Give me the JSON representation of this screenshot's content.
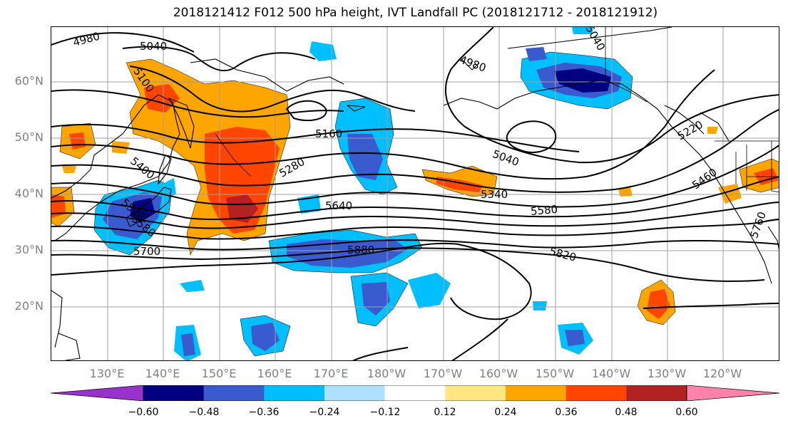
{
  "title": "2018121412 F012 500 hPa height, IVT Landfall PC (2018121712 - 2018121912)",
  "lat_labels": [
    "60°N",
    "50°N",
    "40°N",
    "30°N",
    "20°N"
  ],
  "lon_labels": [
    "130°E",
    "140°E",
    "150°E",
    "160°E",
    "170°E",
    "180°W",
    "170°W",
    "160°W",
    "150°W",
    "140°W",
    "130°W",
    "120°W"
  ],
  "contour_labels": [
    "4980",
    "5040",
    "5100",
    "4980",
    "5040",
    "5160",
    "5280",
    "5220",
    "5400",
    "5040",
    "5340",
    "5460",
    "5640",
    "5580",
    "5520",
    "5580",
    "5700",
    "5880",
    "5820",
    "5760"
  ],
  "colorbar": {
    "ticks": [
      "−0.60",
      "−0.48",
      "−0.36",
      "−0.24",
      "−0.12",
      "0.12",
      "0.24",
      "0.36",
      "0.48",
      "0.60"
    ],
    "colors": [
      "#9932CC",
      "#000080",
      "#3A5BCF",
      "#00BFFF",
      "#AEE1FF",
      "#FFFFFF",
      "#FFE680",
      "#FFA500",
      "#FF4500",
      "#B22222",
      "#FF82AB"
    ]
  }
}
